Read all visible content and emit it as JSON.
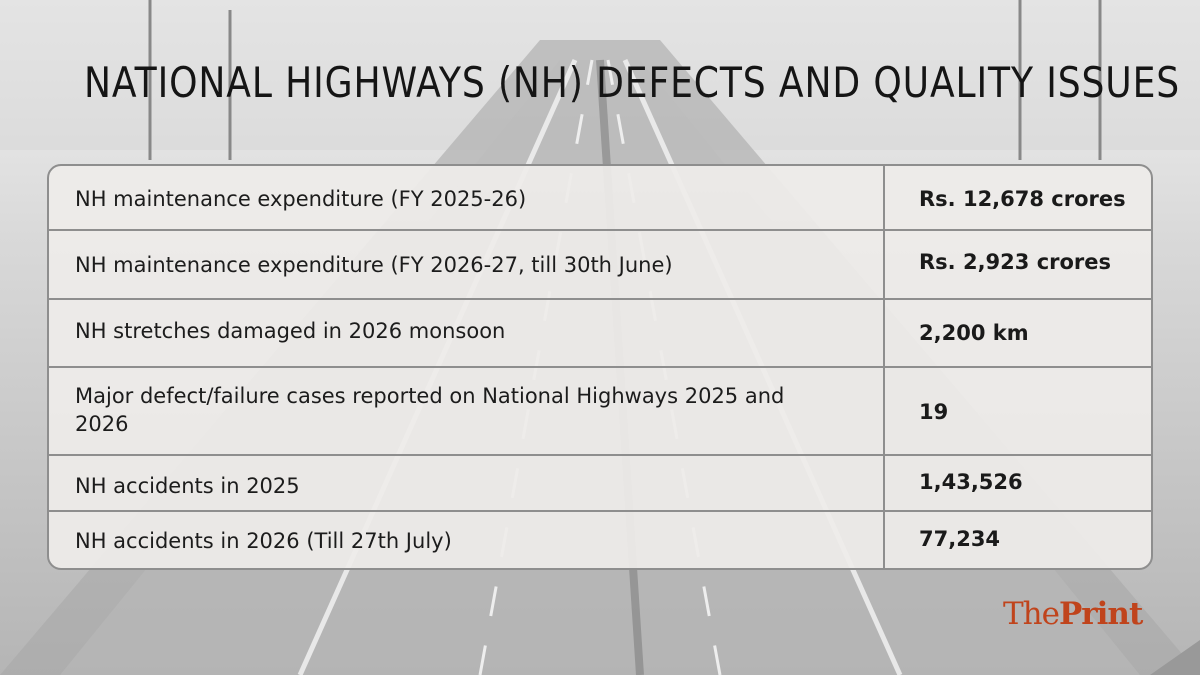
{
  "title": "NATIONAL HIGHWAYS (NH) DEFECTS AND QUALITY ISSUES",
  "rows": [
    {
      "label": "NH maintenance expenditure (FY 2025-26)",
      "value": "Rs. 12,678 crores"
    },
    {
      "label": "NH maintenance expenditure (FY 2026-27, till 30th June)",
      "value": "Rs. 2,923 crores"
    },
    {
      "label": "NH stretches damaged in 2026 monsoon",
      "value": "2,200 km"
    },
    {
      "label": "Major defect/failure cases reported on National Highways 2025 and 2026",
      "value": "19"
    },
    {
      "label": "NH accidents in 2025",
      "value": "1,43,526"
    },
    {
      "label": "NH accidents in 2026 (Till 27th July)",
      "value": "77,234"
    }
  ],
  "brand": {
    "part1": "The",
    "part2": "Print",
    "color": "#c0441c"
  }
}
